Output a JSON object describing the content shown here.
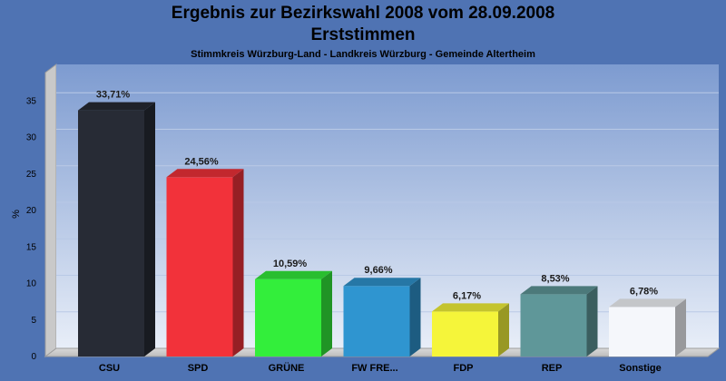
{
  "title": "Ergebnis zur Bezirkswahl 2008 vom 28.09.2008",
  "subtitle": "Erststimmen",
  "caption": "Stimmkreis Würzburg-Land - Landkreis Würzburg - Gemeinde Altertheim",
  "chart_data": {
    "type": "bar",
    "ylabel": "%",
    "xlabel": "",
    "ylim": [
      0,
      37.5
    ],
    "yticks": [
      0,
      5,
      10,
      15,
      20,
      25,
      30,
      35
    ],
    "grid": true,
    "categories": [
      "CSU",
      "SPD",
      "GRÜNE",
      "FW FRE...",
      "FDP",
      "REP",
      "Sonstige"
    ],
    "values": [
      33.71,
      24.56,
      10.59,
      9.66,
      6.17,
      8.53,
      6.78
    ],
    "labels": [
      "33,71%",
      "24,56%",
      "10,59%",
      "9,66%",
      "6,17%",
      "8,53%",
      "6,78%"
    ],
    "colors": [
      "#272b35",
      "#f2323a",
      "#33ee3b",
      "#2f95d0",
      "#f5f53a",
      "#5f9799",
      "#f5f7fb"
    ]
  }
}
